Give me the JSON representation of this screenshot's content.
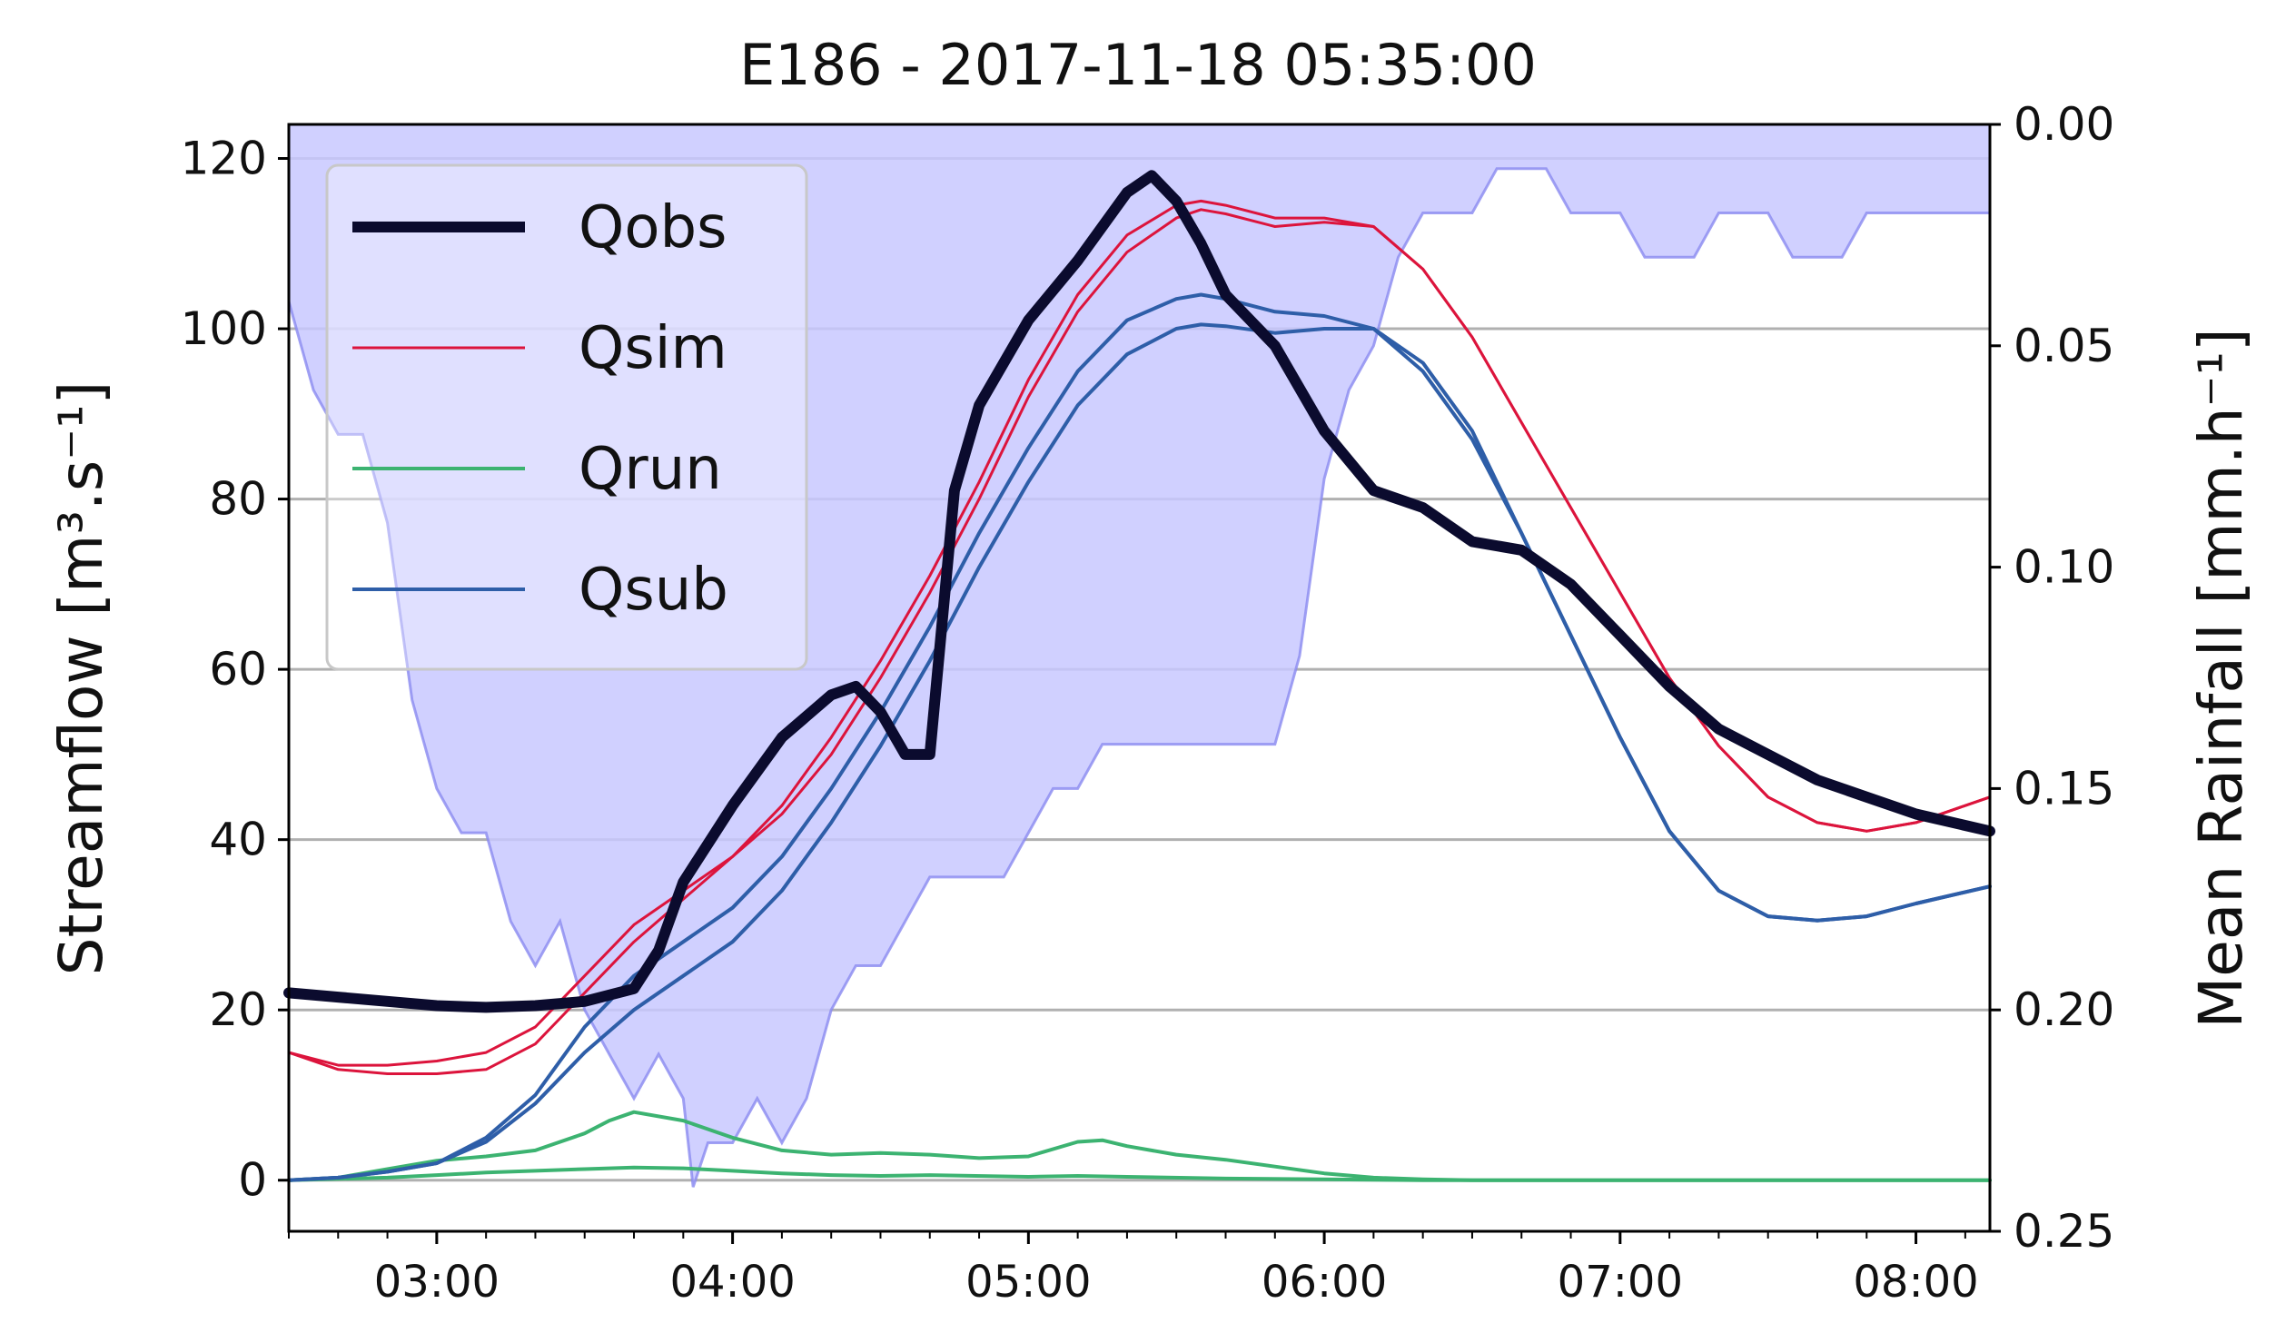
{
  "chart_data": {
    "type": "line",
    "title": "E186 - 2017-11-18 05:35:00",
    "ylabel": "Streamflow [m³.s⁻¹]",
    "y2label": "Mean Rainfall [mm.h⁻¹]",
    "xlim": [
      "02:30",
      "08:15"
    ],
    "ylim": [
      -6,
      124
    ],
    "y2lim": [
      0.25,
      0.0
    ],
    "y2_inverted": true,
    "grid": "horizontal",
    "legend_position": "upper-left",
    "x_ticks": [
      "03:00",
      "04:00",
      "05:00",
      "06:00",
      "07:00",
      "08:00"
    ],
    "y_ticks": [
      "0",
      "20",
      "40",
      "60",
      "80",
      "100",
      "120"
    ],
    "y2_ticks": [
      "0.00",
      "0.05",
      "0.10",
      "0.15",
      "0.20",
      "0.25"
    ],
    "legend": [
      "Qobs",
      "Qsim",
      "Qrun",
      "Qsub"
    ],
    "colors": {
      "Qobs": "#0b0b2e",
      "Qsim": "#dc143c",
      "Qrun": "#3cb371",
      "Qsub": "#2e5ea8",
      "rain_fill": "#c8c8ff",
      "rain_edge": "#8a8af0"
    },
    "series": [
      {
        "name": "Qobs",
        "style": "thick",
        "x": [
          "02:30",
          "02:40",
          "02:50",
          "03:00",
          "03:10",
          "03:20",
          "03:30",
          "03:40",
          "03:45",
          "03:50",
          "04:00",
          "04:10",
          "04:20",
          "04:25",
          "04:30",
          "04:35",
          "04:40",
          "04:45",
          "04:50",
          "05:00",
          "05:10",
          "05:20",
          "05:25",
          "05:30",
          "05:35",
          "05:40",
          "05:50",
          "06:00",
          "06:10",
          "06:20",
          "06:30",
          "06:40",
          "06:50",
          "07:00",
          "07:10",
          "07:20",
          "07:30",
          "07:40",
          "07:50",
          "08:00",
          "08:15"
        ],
        "y": [
          22,
          21.5,
          21,
          20.5,
          20.3,
          20.5,
          21,
          22.5,
          27,
          35,
          44,
          52,
          57,
          58,
          55,
          50,
          50,
          81,
          91,
          101,
          108,
          116,
          118,
          115,
          110,
          104,
          98,
          88,
          81,
          79,
          75,
          74,
          70,
          64,
          58,
          53,
          50,
          47,
          45,
          43,
          41
        ]
      },
      {
        "name": "Qsim",
        "x": [
          "02:30",
          "02:40",
          "02:50",
          "03:00",
          "03:10",
          "03:20",
          "03:30",
          "03:40",
          "03:50",
          "04:00",
          "04:10",
          "04:20",
          "04:30",
          "04:40",
          "04:50",
          "05:00",
          "05:10",
          "05:20",
          "05:30",
          "05:35",
          "05:40",
          "05:50",
          "06:00",
          "06:10",
          "06:20",
          "06:30",
          "06:40",
          "06:50",
          "07:00",
          "07:10",
          "07:20",
          "07:30",
          "07:40",
          "07:50",
          "08:00",
          "08:15"
        ],
        "y": [
          15,
          13,
          12.5,
          12.5,
          13,
          16,
          22,
          28,
          33,
          38,
          44,
          52,
          61,
          71,
          82,
          94,
          104,
          111,
          114.5,
          115,
          114.5,
          113,
          113,
          112,
          107,
          99,
          89,
          79,
          69,
          59,
          51,
          45,
          42,
          41,
          42,
          45
        ]
      },
      {
        "name": "Qsim",
        "x": [
          "02:30",
          "02:40",
          "02:50",
          "03:00",
          "03:10",
          "03:20",
          "03:30",
          "03:40",
          "03:50",
          "04:00",
          "04:10",
          "04:20",
          "04:30",
          "04:40",
          "04:50",
          "05:00",
          "05:10",
          "05:20",
          "05:30",
          "05:35",
          "05:40",
          "05:50",
          "06:00",
          "06:10",
          "06:20",
          "06:30",
          "06:40",
          "06:50",
          "07:00",
          "07:10",
          "07:20",
          "07:30",
          "07:40",
          "07:50",
          "08:00",
          "08:15"
        ],
        "y": [
          15,
          13.5,
          13.5,
          14,
          15,
          18,
          24,
          30,
          34,
          38,
          43,
          50,
          59,
          69,
          80,
          92,
          102,
          109,
          113,
          114,
          113.5,
          112,
          112.5,
          112,
          107,
          99,
          89,
          79,
          69,
          59,
          51,
          45,
          42,
          41,
          42,
          45
        ]
      },
      {
        "name": "Qrun",
        "x": [
          "02:30",
          "02:40",
          "02:50",
          "03:00",
          "03:10",
          "03:20",
          "03:30",
          "03:35",
          "03:40",
          "03:50",
          "04:00",
          "04:10",
          "04:20",
          "04:30",
          "04:40",
          "04:50",
          "05:00",
          "05:10",
          "05:15",
          "05:20",
          "05:30",
          "05:40",
          "05:50",
          "06:00",
          "06:10",
          "06:20",
          "06:30",
          "07:00",
          "08:15"
        ],
        "y": [
          0,
          0.3,
          1.3,
          2.3,
          2.8,
          3.5,
          5.5,
          7,
          8,
          7,
          5,
          3.5,
          3,
          3.2,
          3,
          2.6,
          2.8,
          4.5,
          4.7,
          4,
          3,
          2.4,
          1.6,
          0.8,
          0.3,
          0.1,
          0,
          0,
          0
        ]
      },
      {
        "name": "Qrun",
        "x": [
          "02:30",
          "02:50",
          "03:00",
          "03:10",
          "03:20",
          "03:30",
          "03:40",
          "03:50",
          "04:00",
          "04:10",
          "04:20",
          "04:30",
          "04:40",
          "05:00",
          "05:10",
          "05:20",
          "05:40",
          "06:00",
          "06:20",
          "06:30",
          "07:00",
          "08:15"
        ],
        "y": [
          0,
          0.3,
          0.6,
          0.9,
          1.1,
          1.3,
          1.5,
          1.4,
          1.1,
          0.8,
          0.6,
          0.5,
          0.6,
          0.4,
          0.5,
          0.4,
          0.2,
          0.1,
          0,
          0,
          0,
          0
        ]
      },
      {
        "name": "Qsub",
        "x": [
          "02:30",
          "02:40",
          "02:50",
          "03:00",
          "03:10",
          "03:20",
          "03:30",
          "03:40",
          "03:50",
          "04:00",
          "04:10",
          "04:20",
          "04:30",
          "04:40",
          "04:50",
          "05:00",
          "05:10",
          "05:20",
          "05:30",
          "05:35",
          "05:40",
          "05:50",
          "06:00",
          "06:10",
          "06:20",
          "06:30",
          "06:40",
          "06:50",
          "07:00",
          "07:10",
          "07:20",
          "07:30",
          "07:40",
          "07:50",
          "08:00",
          "08:15"
        ],
        "y": [
          0,
          0.3,
          1,
          2,
          5,
          10,
          18,
          24,
          28,
          32,
          38,
          46,
          55,
          65,
          76,
          86,
          95,
          101,
          103.5,
          104,
          103.5,
          102,
          101.5,
          100,
          95,
          87,
          76,
          64,
          52,
          41,
          34,
          31,
          30.5,
          31,
          32.5,
          34.5
        ]
      },
      {
        "name": "Qsub",
        "x": [
          "02:30",
          "02:40",
          "02:50",
          "03:00",
          "03:10",
          "03:20",
          "03:30",
          "03:40",
          "03:50",
          "04:00",
          "04:10",
          "04:20",
          "04:30",
          "04:40",
          "04:50",
          "05:00",
          "05:10",
          "05:20",
          "05:30",
          "05:35",
          "05:40",
          "05:50",
          "06:00",
          "06:10",
          "06:20",
          "06:30",
          "06:40",
          "06:50",
          "07:00",
          "07:10",
          "07:20",
          "07:30",
          "07:40",
          "07:50",
          "08:00",
          "08:15"
        ],
        "y": [
          0,
          0.3,
          1,
          2,
          4.5,
          9,
          15,
          20,
          24,
          28,
          34,
          42,
          51,
          61,
          72,
          82,
          91,
          97,
          100,
          100.5,
          100.3,
          99.5,
          100,
          100,
          96,
          88,
          76,
          64,
          52,
          41,
          34,
          31,
          30.5,
          31,
          32.5,
          34.5
        ]
      },
      {
        "name": "Mean Rainfall",
        "style": "filled-step-area",
        "axis": "right",
        "x": [
          "02:30",
          "02:35",
          "02:40",
          "02:45",
          "02:50",
          "02:55",
          "03:00",
          "03:05",
          "03:10",
          "03:15",
          "03:20",
          "03:25",
          "03:30",
          "03:35",
          "03:40",
          "03:45",
          "03:50",
          "03:52",
          "03:55",
          "04:00",
          "04:05",
          "04:10",
          "04:15",
          "04:20",
          "04:25",
          "04:30",
          "04:35",
          "04:40",
          "04:45",
          "04:50",
          "04:55",
          "05:00",
          "05:05",
          "05:10",
          "05:15",
          "05:20",
          "05:25",
          "05:30",
          "05:35",
          "05:40",
          "05:45",
          "05:50",
          "05:55",
          "06:00",
          "06:05",
          "06:10",
          "06:15",
          "06:20",
          "06:25",
          "06:30",
          "06:35",
          "06:40",
          "06:45",
          "06:50",
          "06:55",
          "07:00",
          "07:05",
          "07:10",
          "07:15",
          "07:20",
          "07:25",
          "07:30",
          "07:35",
          "07:40",
          "07:45",
          "07:50",
          "07:55",
          "08:00",
          "08:05",
          "08:10",
          "08:15"
        ],
        "y": [
          0.04,
          0.06,
          0.07,
          0.07,
          0.09,
          0.13,
          0.15,
          0.16,
          0.16,
          0.18,
          0.19,
          0.18,
          0.2,
          0.21,
          0.22,
          0.21,
          0.22,
          0.24,
          0.23,
          0.23,
          0.22,
          0.23,
          0.22,
          0.2,
          0.19,
          0.19,
          0.18,
          0.17,
          0.17,
          0.17,
          0.17,
          0.16,
          0.15,
          0.15,
          0.14,
          0.14,
          0.14,
          0.14,
          0.14,
          0.14,
          0.14,
          0.14,
          0.12,
          0.08,
          0.06,
          0.05,
          0.03,
          0.02,
          0.02,
          0.02,
          0.01,
          0.01,
          0.01,
          0.02,
          0.02,
          0.02,
          0.03,
          0.03,
          0.03,
          0.02,
          0.02,
          0.02,
          0.03,
          0.03,
          0.03,
          0.02,
          0.02,
          0.02,
          0.02,
          0.02,
          0.02
        ]
      }
    ]
  }
}
